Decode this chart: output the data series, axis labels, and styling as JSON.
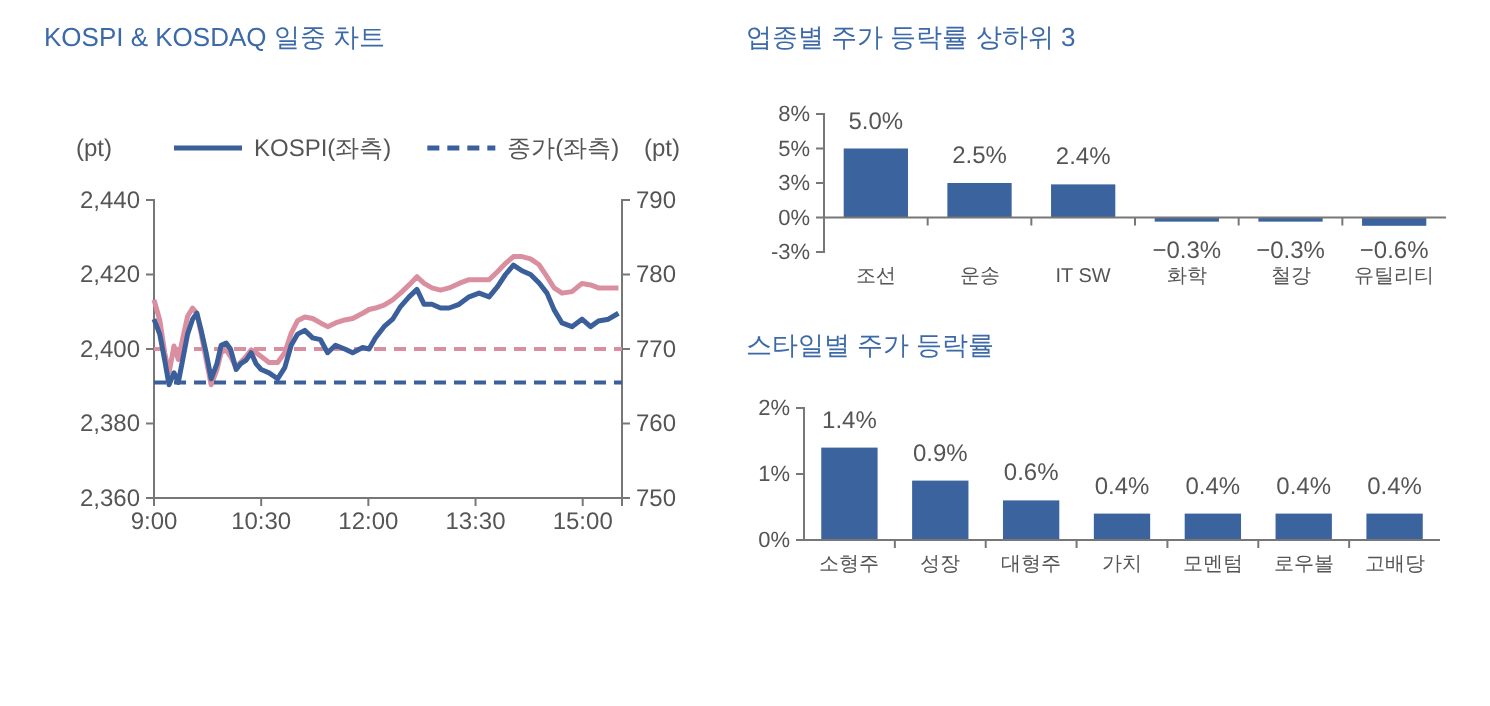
{
  "chart_data": [
    {
      "type": "line",
      "title": "KOSPI & KOSDAQ 일중 차트",
      "ylabel": "(pt)",
      "y2label": "(pt)",
      "legend": "top",
      "xlim": [
        9,
        15.55
      ],
      "xticks": [
        {
          "value": 9,
          "label": "9:00"
        },
        {
          "value": 10.5,
          "label": "10:30"
        },
        {
          "value": 12,
          "label": "12:00"
        },
        {
          "value": 13.5,
          "label": "13:30"
        },
        {
          "value": 15,
          "label": "15:00"
        }
      ],
      "ylim": [
        2360,
        2440
      ],
      "yticks": [
        {
          "value": 2360,
          "label": "2,360"
        },
        {
          "value": 2380,
          "label": "2,380"
        },
        {
          "value": 2400,
          "label": "2,400"
        },
        {
          "value": 2420,
          "label": "2,420"
        },
        {
          "value": 2440,
          "label": "2,440"
        }
      ],
      "y2lim": [
        750,
        790
      ],
      "y2ticks": [
        750,
        760,
        770,
        780,
        790
      ],
      "ref_lines": [
        {
          "axis": "y2",
          "value": 770,
          "color": "#d98fa0",
          "line_style": "dashed"
        }
      ],
      "series": [
        {
          "name": "KOSPI(좌측)",
          "color": "#3a5f9a",
          "line_style": "solid",
          "x": [
            9,
            9.08,
            9.15,
            9.21,
            9.28,
            9.34,
            9.4,
            9.47,
            9.54,
            9.6,
            9.66,
            9.73,
            9.8,
            9.88,
            9.94,
            10.01,
            10.07,
            10.15,
            10.21,
            10.29,
            10.36,
            10.43,
            10.5,
            10.61,
            10.73,
            10.83,
            10.92,
            11.01,
            11.11,
            11.22,
            11.33,
            11.43,
            11.54,
            11.67,
            11.78,
            11.92,
            12.01,
            12.1,
            12.22,
            12.34,
            12.45,
            12.57,
            12.68,
            12.78,
            12.89,
            13.01,
            13.13,
            13.27,
            13.41,
            13.55,
            13.69,
            13.81,
            13.92,
            14.03,
            14.15,
            14.27,
            14.39,
            14.5,
            14.6,
            14.71,
            14.85,
            14.99,
            15.11,
            15.22,
            15.36,
            15.5
          ],
          "values": [
            2408,
            2404,
            2397,
            2390.4,
            2393.6,
            2391,
            2397,
            2404,
            2408,
            2409.6,
            2405,
            2399,
            2392,
            2396,
            2401,
            2401.6,
            2400,
            2394.5,
            2396,
            2397,
            2399,
            2396,
            2394.5,
            2393.6,
            2392,
            2395,
            2401,
            2404,
            2405,
            2403,
            2402.5,
            2399,
            2401,
            2400,
            2399,
            2400.4,
            2400,
            2403,
            2406,
            2408,
            2411.4,
            2414,
            2416,
            2412,
            2412,
            2411,
            2411,
            2412,
            2414,
            2415,
            2414,
            2416.8,
            2420,
            2422.5,
            2421,
            2420,
            2417.7,
            2415,
            2410.5,
            2407,
            2406,
            2408,
            2406,
            2407.5,
            2408,
            2409.6
          ]
        },
        {
          "color": "#d98fa0",
          "axis": "y2",
          "line_style": "solid",
          "x": [
            9,
            9.08,
            9.15,
            9.21,
            9.28,
            9.34,
            9.4,
            9.47,
            9.54,
            9.6,
            9.66,
            9.73,
            9.8,
            9.88,
            9.94,
            10.01,
            10.07,
            10.15,
            10.21,
            10.29,
            10.36,
            10.43,
            10.5,
            10.61,
            10.73,
            10.83,
            10.92,
            11.01,
            11.11,
            11.22,
            11.33,
            11.43,
            11.54,
            11.67,
            11.78,
            11.92,
            12.01,
            12.1,
            12.22,
            12.34,
            12.45,
            12.57,
            12.68,
            12.78,
            12.89,
            13.01,
            13.13,
            13.27,
            13.41,
            13.55,
            13.69,
            13.81,
            13.92,
            14.03,
            14.15,
            14.27,
            14.39,
            14.5,
            14.6,
            14.71,
            14.85,
            14.99,
            15.11,
            15.22,
            15.36,
            15.5
          ],
          "values": [
            776.6,
            773.9,
            769.5,
            766.8,
            770.4,
            768.6,
            771.3,
            774.4,
            775.5,
            774.8,
            772.1,
            768.6,
            765.2,
            767.2,
            769.5,
            769.9,
            769,
            767.5,
            768.2,
            769,
            769.9,
            769.5,
            769,
            768.2,
            768.2,
            769.5,
            772.1,
            773.8,
            774.3,
            774.1,
            773.5,
            773,
            773.5,
            773.9,
            774.1,
            774.8,
            775.3,
            775.5,
            775.9,
            776.6,
            777.5,
            778.6,
            779.7,
            778.8,
            778.2,
            777.9,
            778.2,
            778.8,
            779.3,
            779.3,
            779.3,
            780.4,
            781.5,
            782.4,
            782.4,
            782.1,
            781.3,
            779.7,
            778.2,
            777.5,
            777.7,
            778.8,
            778.6,
            778.2,
            778.2,
            778.2
          ]
        },
        {
          "name": "종가(좌측)",
          "color": "#3a5f9a",
          "line_style": "dashed",
          "x": [
            9,
            15.55
          ],
          "values": [
            2391,
            2391
          ]
        }
      ]
    },
    {
      "type": "bar",
      "title": "업종별 주가 등락률 상하위 3",
      "categories": [
        "조선",
        "운송",
        "IT SW",
        "화학",
        "철강",
        "유틸리티"
      ],
      "values": [
        5.0,
        2.5,
        2.4,
        -0.3,
        -0.3,
        -0.6
      ],
      "value_labels": [
        "5.0%",
        "2.5%",
        "2.4%",
        "−0.3%",
        "−0.3%",
        "−0.6%"
      ],
      "color": "#3b639e",
      "ylim": [
        -2.5,
        7.5
      ],
      "yticks": [
        {
          "value": -2.5,
          "label": "-3%"
        },
        {
          "value": 0,
          "label": "0%"
        },
        {
          "value": 2.5,
          "label": "3%"
        },
        {
          "value": 5,
          "label": "5%"
        },
        {
          "value": 7.5,
          "label": "8%"
        }
      ]
    },
    {
      "type": "bar",
      "title": "스타일별 주가 등락률",
      "categories": [
        "소형주",
        "성장",
        "대형주",
        "가치",
        "모멘텀",
        "로우볼",
        "고배당"
      ],
      "values": [
        1.4,
        0.9,
        0.6,
        0.4,
        0.4,
        0.4,
        0.4
      ],
      "value_labels": [
        "1.4%",
        "0.9%",
        "0.6%",
        "0.4%",
        "0.4%",
        "0.4%",
        "0.4%"
      ],
      "color": "#3b639e",
      "ylim": [
        0,
        2
      ],
      "yticks": [
        {
          "value": 0,
          "label": "0%"
        },
        {
          "value": 1,
          "label": "1%"
        },
        {
          "value": 2,
          "label": "2%"
        }
      ]
    }
  ]
}
